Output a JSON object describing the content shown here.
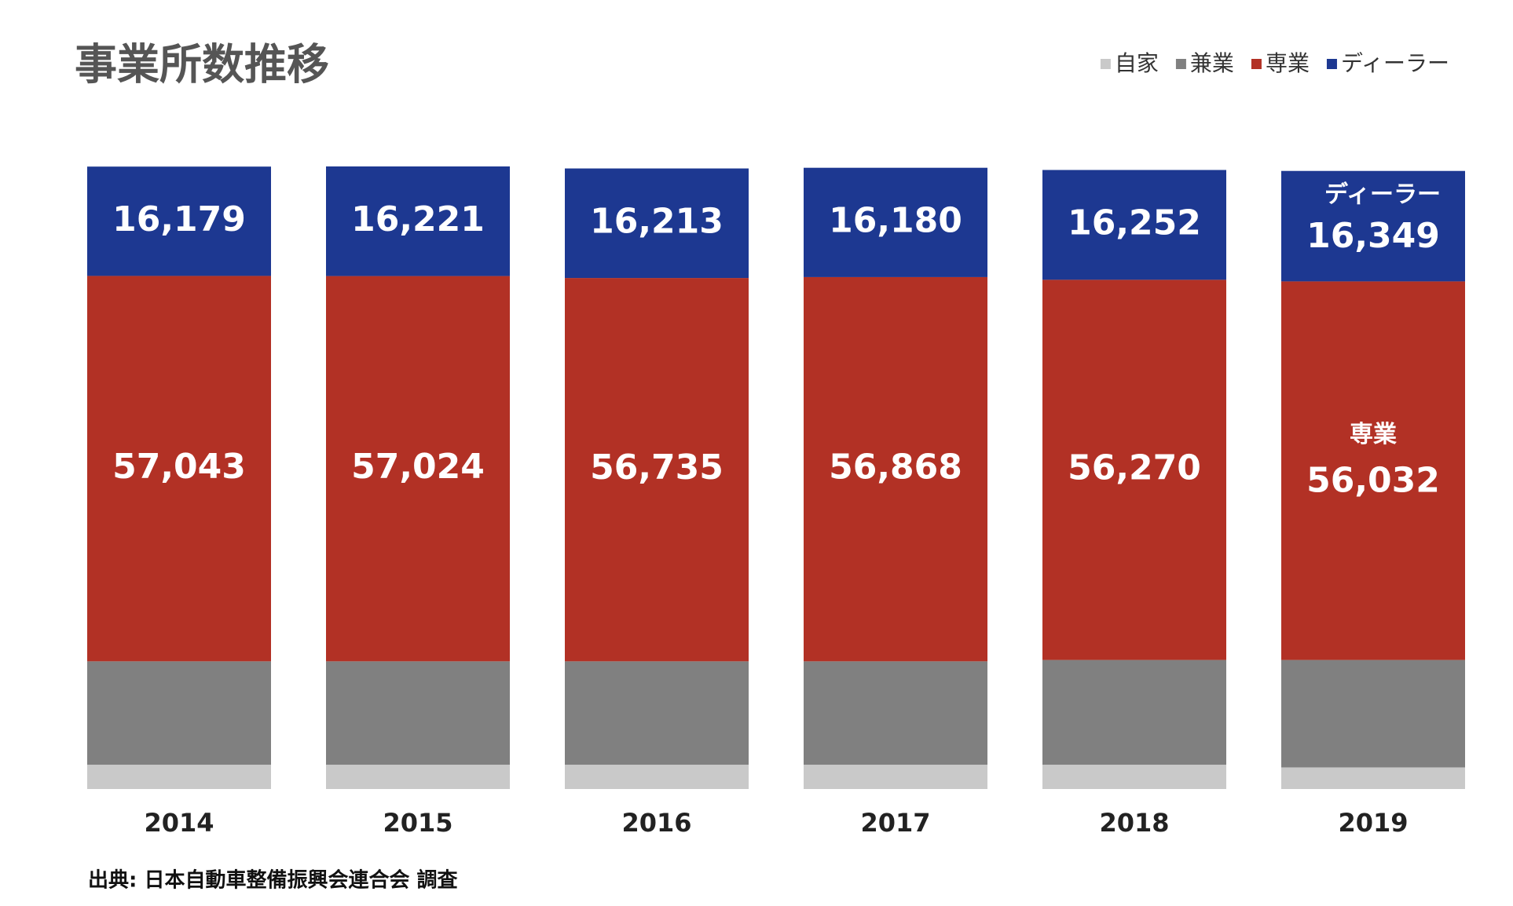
{
  "chart_data": {
    "type": "stacked_bar",
    "title": "事業所数推移",
    "categories": [
      "2014",
      "2015",
      "2016",
      "2017",
      "2018",
      "2019"
    ],
    "series": [
      {
        "name": "自家",
        "color": "#c9c9c9",
        "values": [
          3600,
          3600,
          3600,
          3600,
          3600,
          3200
        ]
      },
      {
        "name": "兼業",
        "color": "#808080",
        "values": [
          15300,
          15300,
          15300,
          15300,
          15500,
          15900
        ]
      },
      {
        "name": "専業",
        "color": "#b23125",
        "values": [
          57043,
          57024,
          56735,
          56868,
          56270,
          56032
        ],
        "value_labels": [
          "57,043",
          "57,024",
          "56,735",
          "56,868",
          "56,270",
          "56,032"
        ]
      },
      {
        "name": "ディーラー",
        "color": "#1d3891",
        "values": [
          16179,
          16221,
          16213,
          16180,
          16252,
          16349
        ],
        "value_labels": [
          "16,179",
          "16,221",
          "16,213",
          "16,180",
          "16,252",
          "16,349"
        ]
      }
    ],
    "annotations": [
      {
        "text": "ディーラー",
        "category": "2019"
      },
      {
        "text": "専業",
        "category": "2019"
      }
    ],
    "source": "出典: 日本自動車整備振興会連合会 調査",
    "legend": "top-right"
  }
}
